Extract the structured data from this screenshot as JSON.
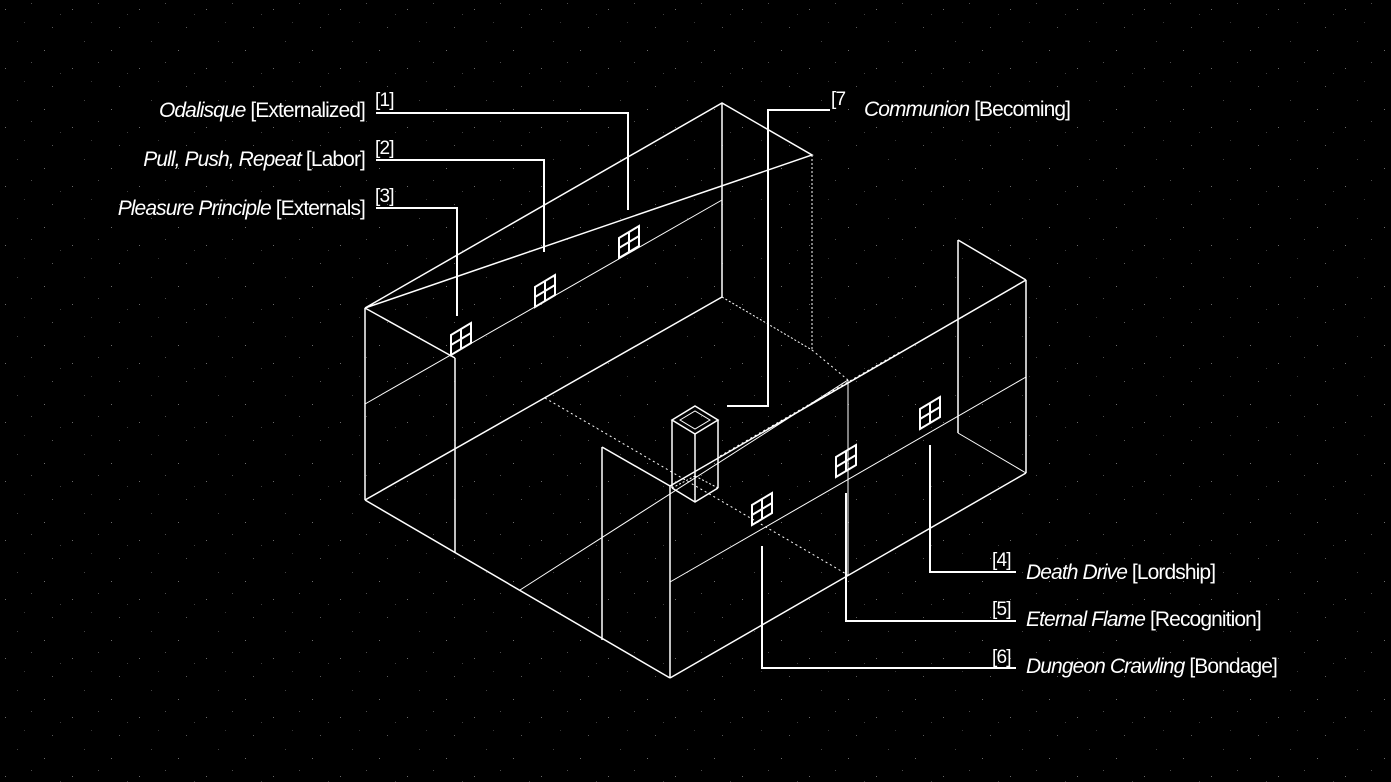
{
  "background_color": "#000000",
  "line_color": "#ffffff",
  "labels": [
    {
      "num": "[1]",
      "title": "Odalisque",
      "tag": "[Externalized]"
    },
    {
      "num": "[2]",
      "title": "Pull, Push, Repeat",
      "tag": "[Labor]"
    },
    {
      "num": "[3]",
      "title": "Pleasure Principle",
      "tag": "[Externals]"
    },
    {
      "num": "[4]",
      "title": "Death Drive",
      "tag": "[Lordship]"
    },
    {
      "num": "[5]",
      "title": "Eternal Flame",
      "tag": "[Recognition]"
    },
    {
      "num": "[6]",
      "title": "Dungeon Crawling",
      "tag": "[Bondage]"
    },
    {
      "num": "[7",
      "title": "Communion",
      "tag": "[Becoming]"
    }
  ]
}
